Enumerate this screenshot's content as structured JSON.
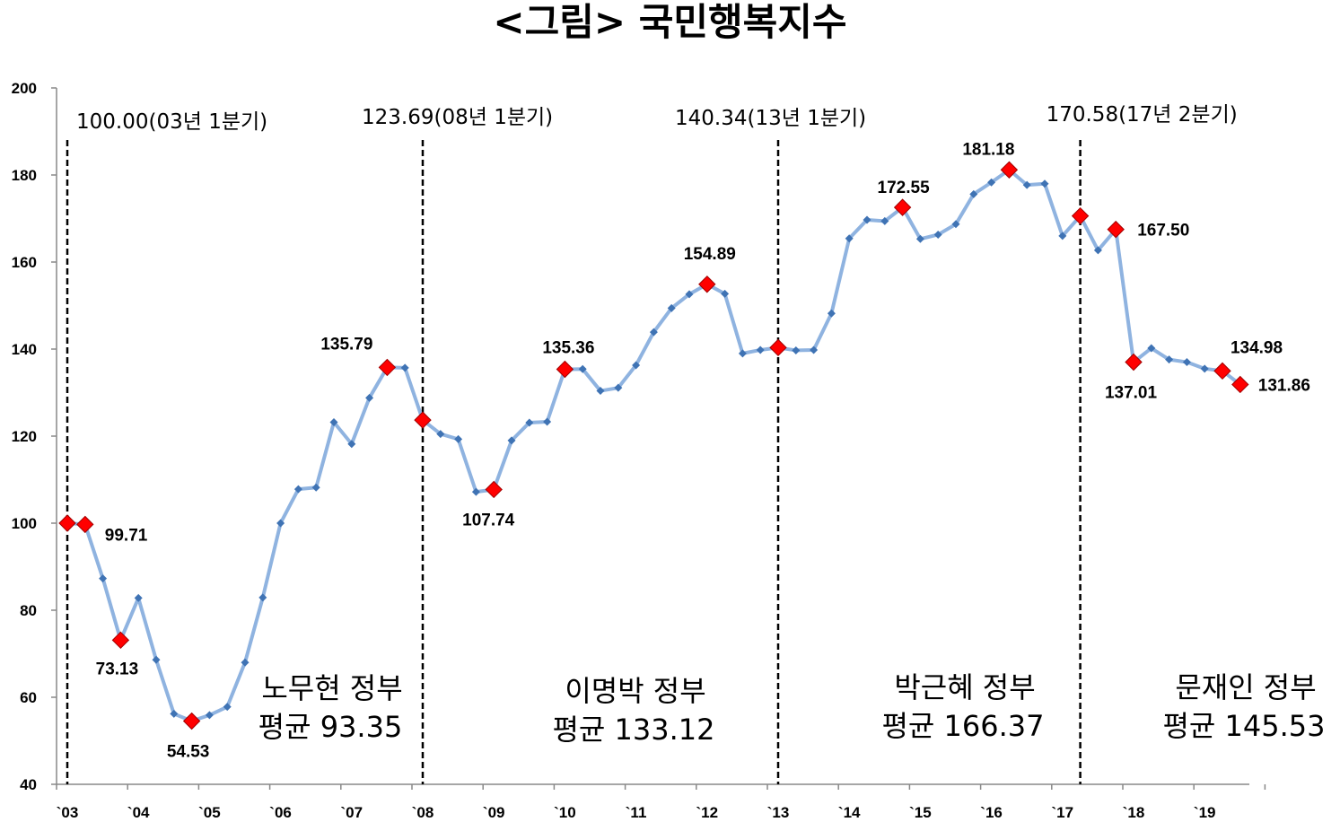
{
  "title": "<그림>  국민행복지수",
  "chart_data": {
    "type": "line",
    "ylim": [
      40,
      200
    ],
    "yticks": [
      40,
      60,
      80,
      100,
      120,
      140,
      160,
      180,
      200
    ],
    "xticks": [
      "`03",
      "`04",
      "`05",
      "`06",
      "`07",
      "`08",
      "`09",
      "`10",
      "`11",
      "`12",
      "`13",
      "`14",
      "`15",
      "`16",
      "`17",
      "`18",
      "`19"
    ],
    "line_color": "#8fb3e0",
    "point_color": "#3f73b4",
    "highlight_color": "#ff0000",
    "series": [
      {
        "x": [
          2003.0,
          2003.25,
          2003.5,
          2003.75,
          2004.0,
          2004.25,
          2004.5,
          2004.75,
          2005.0,
          2005.25,
          2005.5,
          2005.75,
          2006.0,
          2006.25,
          2006.5,
          2006.75,
          2007.0,
          2007.25,
          2007.5,
          2007.75,
          2008.0,
          2008.25,
          2008.5,
          2008.75,
          2009.0,
          2009.25,
          2009.5,
          2009.75,
          2010.0,
          2010.25,
          2010.5,
          2010.75,
          2011.0,
          2011.25,
          2011.5,
          2011.75,
          2012.0,
          2012.25,
          2012.5,
          2012.75,
          2013.0,
          2013.25,
          2013.5,
          2013.75,
          2014.0,
          2014.25,
          2014.5,
          2014.75,
          2015.0,
          2015.25,
          2015.5,
          2015.75,
          2016.0,
          2016.25,
          2016.5,
          2016.75,
          2017.0,
          2017.25,
          2017.5,
          2017.75,
          2018.0,
          2018.25,
          2018.5,
          2018.75,
          2019.0,
          2019.25,
          2019.5
        ],
        "y": [
          100.0,
          99.71,
          87.3,
          73.13,
          82.8,
          68.6,
          56.2,
          54.53,
          55.9,
          57.8,
          68.0,
          82.9,
          100.0,
          107.8,
          108.2,
          123.2,
          118.2,
          128.8,
          135.79,
          135.7,
          123.69,
          120.5,
          119.3,
          107.2,
          107.74,
          119.0,
          123.1,
          123.3,
          135.36,
          135.4,
          130.4,
          131.1,
          136.3,
          143.9,
          149.4,
          152.6,
          154.89,
          152.7,
          139.0,
          139.8,
          140.34,
          139.7,
          139.8,
          148.2,
          165.4,
          169.7,
          169.4,
          172.55,
          165.3,
          166.3,
          168.7,
          175.6,
          178.3,
          181.18,
          177.7,
          178.0,
          166.0,
          170.58,
          162.7,
          167.5,
          137.01,
          140.2,
          137.6,
          137.0,
          135.5,
          134.98,
          131.86
        ]
      }
    ],
    "highlights": [
      {
        "x": 2003.0,
        "y": 100.0,
        "label": ""
      },
      {
        "x": 2003.25,
        "y": 99.71,
        "label": "99.71"
      },
      {
        "x": 2003.75,
        "y": 73.13,
        "label": "73.13"
      },
      {
        "x": 2004.75,
        "y": 54.53,
        "label": "54.53"
      },
      {
        "x": 2007.5,
        "y": 135.79,
        "label": "135.79"
      },
      {
        "x": 2008.0,
        "y": 123.69,
        "label": ""
      },
      {
        "x": 2009.0,
        "y": 107.74,
        "label": "107.74"
      },
      {
        "x": 2010.0,
        "y": 135.36,
        "label": "135.36"
      },
      {
        "x": 2012.0,
        "y": 154.89,
        "label": "154.89"
      },
      {
        "x": 2013.0,
        "y": 140.34,
        "label": ""
      },
      {
        "x": 2014.75,
        "y": 172.55,
        "label": "172.55"
      },
      {
        "x": 2016.25,
        "y": 181.18,
        "label": "181.18"
      },
      {
        "x": 2017.25,
        "y": 170.58,
        "label": ""
      },
      {
        "x": 2017.75,
        "y": 167.5,
        "label": "167.50"
      },
      {
        "x": 2018.0,
        "y": 137.01,
        "label": "137.01"
      },
      {
        "x": 2019.25,
        "y": 134.98,
        "label": "134.98"
      },
      {
        "x": 2019.5,
        "y": 131.86,
        "label": "131.86"
      }
    ],
    "period_lines": [
      {
        "x": 2003.0,
        "label": "100.00(03년 1분기)"
      },
      {
        "x": 2008.0,
        "label": "123.69(08년 1분기)"
      },
      {
        "x": 2013.0,
        "label": "140.34(13년 1분기)"
      },
      {
        "x": 2017.25,
        "label": "170.58(17년 2분기)"
      }
    ],
    "governments": [
      {
        "name": "노무현 정부",
        "average": "평균 93.35"
      },
      {
        "name": "이명박 정부",
        "average": "평균 133.12"
      },
      {
        "name": "박근혜 정부",
        "average": "평균 166.37"
      },
      {
        "name": "문재인 정부",
        "average": "평균 145.53"
      }
    ]
  }
}
